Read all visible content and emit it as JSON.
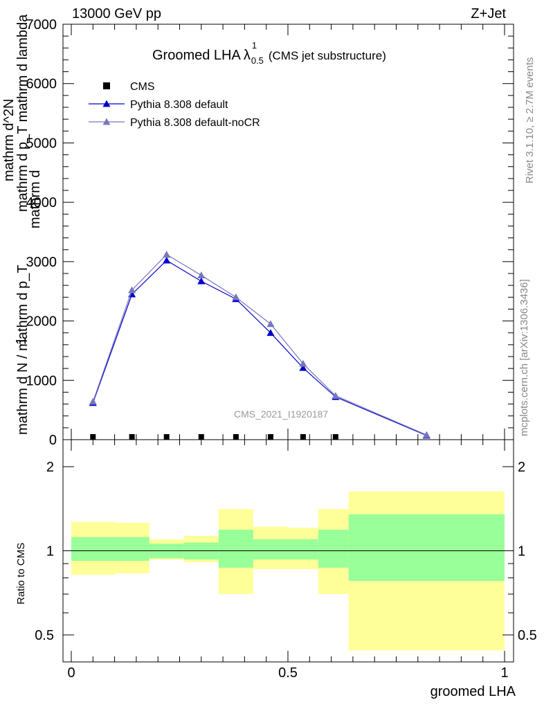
{
  "header": {
    "left": "13000 GeV pp",
    "right": "Z+Jet"
  },
  "title": {
    "main": "Groomed LHA",
    "lambda": "λ",
    "sup": "1",
    "sub": "0.5",
    "paren": "(CMS jet substructure)"
  },
  "side": {
    "rivet": "Rivet 3.1.10, ≥ 2.7M events",
    "mcplots": "mcplots.cern.ch [arXiv:1306.3436]"
  },
  "watermark": "CMS_2021_I1920187",
  "y_label_main": {
    "one": "1",
    "fraction_top": "mathrm d N / mathrm d p_T",
    "fraction_bottom_left": "mathrm d^2N",
    "fraction_bottom_right": "mathrm d p_T mathrm d lambda"
  },
  "ratio_ylabel": "Ratio to CMS",
  "xlabel": "groomed LHA",
  "colors": {
    "pythia_default": "#0000cc",
    "pythia_nocr": "#7777bb",
    "band_inner": "#99ff99",
    "band_outer": "#ffff99"
  },
  "chart_data": [
    {
      "type": "line",
      "panel": "main",
      "ylim": [
        0,
        7000
      ],
      "xlim": [
        -0.02,
        1.02
      ],
      "y_ticks": [
        "0",
        "1000",
        "2000",
        "3000",
        "4000",
        "5000",
        "6000",
        "7000"
      ],
      "y_tick_values": [
        0,
        1000,
        2000,
        3000,
        4000,
        5000,
        6000,
        7000
      ],
      "legend": {
        "placement": "top-left"
      },
      "series": [
        {
          "name": "CMS",
          "marker": "square",
          "x": [
            0.05,
            0.14,
            0.22,
            0.3,
            0.38,
            0.46,
            0.535,
            0.61
          ],
          "y": [
            0,
            0,
            0,
            0,
            0,
            0,
            0,
            0
          ]
        },
        {
          "name": "Pythia 8.308 default",
          "marker": "triangle",
          "x": [
            0.05,
            0.14,
            0.22,
            0.3,
            0.38,
            0.46,
            0.535,
            0.61,
            0.82
          ],
          "y": [
            620,
            2450,
            3020,
            2670,
            2370,
            1800,
            1210,
            720,
            70
          ]
        },
        {
          "name": "Pythia 8.308 default-noCR",
          "marker": "triangle",
          "x": [
            0.05,
            0.14,
            0.22,
            0.3,
            0.38,
            0.46,
            0.535,
            0.61,
            0.82
          ],
          "y": [
            640,
            2520,
            3120,
            2770,
            2400,
            1950,
            1280,
            740,
            80
          ]
        }
      ]
    },
    {
      "type": "area",
      "panel": "ratio",
      "ylim": [
        0.4,
        2.3
      ],
      "y_ticks": [
        "0.5",
        "1",
        "2"
      ],
      "y_tick_values": [
        0.5,
        1,
        2
      ],
      "x_ticks": [
        "0",
        "0.5",
        "1"
      ],
      "x_tick_values": [
        0,
        0.5,
        1
      ],
      "bins": [
        {
          "lo": 0.0,
          "hi": 0.1,
          "inner": [
            0.92,
            1.12
          ],
          "outer": [
            0.82,
            1.27
          ]
        },
        {
          "lo": 0.1,
          "hi": 0.18,
          "inner": [
            0.92,
            1.12
          ],
          "outer": [
            0.83,
            1.26
          ]
        },
        {
          "lo": 0.18,
          "hi": 0.26,
          "inner": [
            0.94,
            1.06
          ],
          "outer": [
            0.93,
            1.1
          ]
        },
        {
          "lo": 0.26,
          "hi": 0.34,
          "inner": [
            0.93,
            1.07
          ],
          "outer": [
            0.91,
            1.13
          ]
        },
        {
          "lo": 0.34,
          "hi": 0.42,
          "inner": [
            0.87,
            1.19
          ],
          "outer": [
            0.7,
            1.41
          ]
        },
        {
          "lo": 0.42,
          "hi": 0.5,
          "inner": [
            0.93,
            1.1
          ],
          "outer": [
            0.86,
            1.22
          ]
        },
        {
          "lo": 0.5,
          "hi": 0.57,
          "inner": [
            0.93,
            1.1
          ],
          "outer": [
            0.86,
            1.21
          ]
        },
        {
          "lo": 0.57,
          "hi": 0.64,
          "inner": [
            0.87,
            1.19
          ],
          "outer": [
            0.7,
            1.41
          ]
        },
        {
          "lo": 0.64,
          "hi": 1.0,
          "inner": [
            0.78,
            1.35
          ],
          "outer": [
            0.44,
            1.63
          ]
        }
      ]
    }
  ]
}
